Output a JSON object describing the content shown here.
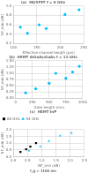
{
  "chart_data": [
    {
      "type": "scatter",
      "title": "(a)  MOSFET f = 8 GHz",
      "xlabel": "Effective channel length (μm)",
      "ylabel": "NF_min (dB)",
      "x": [
        115,
        130,
        155,
        170,
        210,
        240
      ],
      "values": [
        0.55,
        0.42,
        0.6,
        0.52,
        0.82,
        0.92
      ],
      "color": "#00bfff",
      "marker": "circle",
      "xlim": [
        100,
        250
      ],
      "ylim": [
        0.2,
        1.0
      ],
      "xticks": [
        100,
        150,
        200,
        250
      ],
      "yticks": [
        0.2,
        0.4,
        0.6,
        0.8,
        {
          "value": 1.0,
          "label": "1.0"
        }
      ],
      "grid": true
    },
    {
      "type": "scatter",
      "title": "(b)  HEMT AlGaAs/GaAs f = 12 GHz",
      "xlabel": "Gate length (nm)",
      "ylabel": "NF_min (dB)",
      "x": [
        150,
        300,
        500,
        600,
        750,
        850,
        950
      ],
      "values": [
        0.22,
        0.38,
        0.6,
        1.0,
        0.8,
        1.05,
        1.28
      ],
      "color": "#00bfff",
      "marker": "circle",
      "xlim": [
        0,
        1000
      ],
      "ylim": [
        0,
        1.5
      ],
      "xticks": [
        0,
        250,
        500,
        750,
        1000
      ],
      "yticks": [
        {
          "value": 0,
          "label": "0.00"
        },
        0.25,
        {
          "value": 0.5,
          "label": "0.50"
        },
        0.75,
        {
          "value": 1.0,
          "label": "1.00"
        },
        1.25,
        {
          "value": 1.5,
          "label": "1.50"
        }
      ],
      "grid": true
    },
    {
      "type": "scatter",
      "title": "(c)  HEMT InP",
      "xlabel": "NF_min (dB)",
      "ylabel": "NF_min (dB)",
      "series": [
        {
          "name": "60 GHz",
          "color": "#000000",
          "marker": "square",
          "x": [
            0.25,
            0.45,
            0.6,
            0.8
          ],
          "values": [
            0.35,
            0.55,
            0.75,
            1.0
          ]
        },
        {
          "name": "94 GHz",
          "color": "#00bfff",
          "marker": "triangle",
          "x": [
            0.55,
            0.95,
            1.25,
            1.65,
            2.05
          ],
          "values": [
            0.45,
            0.75,
            1.15,
            1.55,
            1.75
          ]
        }
      ],
      "annotations": [
        "f_g = 1100 nm"
      ],
      "legend": "upper left",
      "xlim": [
        0,
        2.5
      ],
      "ylim": [
        0,
        2.0
      ],
      "xticks": [
        {
          "value": 0,
          "label": "0.0"
        },
        0.5,
        {
          "value": 1.0,
          "label": "1.0"
        },
        1.5,
        {
          "value": 2.0,
          "label": "2.0"
        },
        2.5
      ],
      "yticks": [
        {
          "value": 0,
          "label": "0.0"
        },
        0.5,
        {
          "value": 1.0,
          "label": "1.0"
        },
        1.5,
        {
          "value": 2.0,
          "label": "2.0"
        }
      ],
      "grid": true
    }
  ]
}
